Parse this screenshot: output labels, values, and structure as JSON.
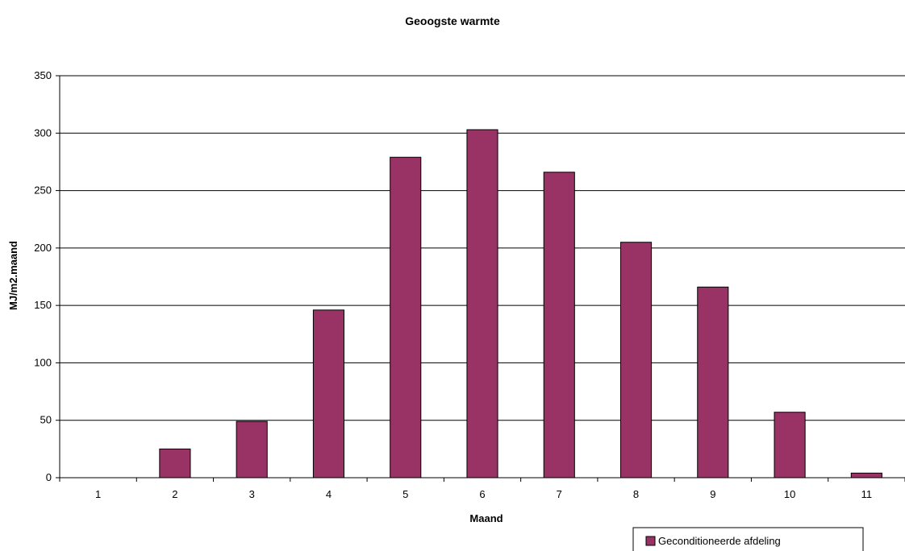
{
  "chart_data": {
    "type": "bar",
    "title": "Geoogste warmte",
    "xlabel": "Maand",
    "ylabel": "MJ/m2.maand",
    "categories": [
      "1",
      "2",
      "3",
      "4",
      "5",
      "6",
      "7",
      "8",
      "9",
      "10",
      "11"
    ],
    "series": [
      {
        "name": "Geconditioneerde afdeling",
        "color": "#993366",
        "values": [
          0,
          25,
          49,
          146,
          279,
          303,
          266,
          205,
          166,
          57,
          4
        ]
      }
    ],
    "ylim": [
      0,
      350
    ],
    "yticks": [
      0,
      50,
      100,
      150,
      200,
      250,
      300,
      350
    ],
    "grid": true,
    "legend_position": "bottom-right"
  }
}
